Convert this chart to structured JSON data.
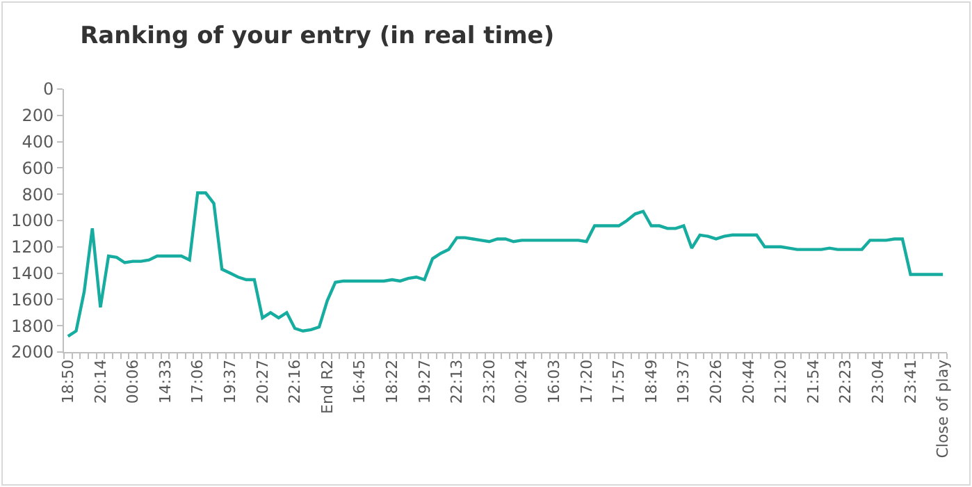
{
  "chart_data": {
    "type": "line",
    "title": "Ranking of your entry (in real time)",
    "categories": [
      "18:50",
      null,
      null,
      null,
      "20:14",
      null,
      null,
      null,
      "00:06",
      null,
      null,
      null,
      "14:33",
      null,
      null,
      null,
      "17:06",
      null,
      null,
      null,
      "19:37",
      null,
      null,
      null,
      "20:27",
      null,
      null,
      null,
      "22:16",
      null,
      null,
      null,
      "End R2",
      null,
      null,
      null,
      "16:45",
      null,
      null,
      null,
      "18:22",
      null,
      null,
      null,
      "19:27",
      null,
      null,
      null,
      "22:13",
      null,
      null,
      null,
      "23:20",
      null,
      null,
      null,
      "00:24",
      null,
      null,
      null,
      "16:03",
      null,
      null,
      null,
      "17:20",
      null,
      null,
      null,
      "17:57",
      null,
      null,
      null,
      "18:49",
      null,
      null,
      null,
      "19:37",
      null,
      null,
      null,
      "20:26",
      null,
      null,
      null,
      "20:44",
      null,
      null,
      null,
      "21:20",
      null,
      null,
      null,
      "21:54",
      null,
      null,
      null,
      "22:23",
      null,
      null,
      null,
      "23:04",
      null,
      null,
      null,
      "23:41",
      null,
      null,
      null,
      "Close of play"
    ],
    "series": [
      {
        "color": "#17aca0",
        "values": [
          1880,
          1840,
          1540,
          1060,
          1660,
          1270,
          1280,
          1320,
          1310,
          1310,
          1300,
          1270,
          1270,
          1270,
          1270,
          1300,
          790,
          790,
          870,
          1370,
          1400,
          1430,
          1450,
          1450,
          1740,
          1700,
          1740,
          1700,
          1820,
          1840,
          1830,
          1810,
          1610,
          1470,
          1460,
          1460,
          1460,
          1460,
          1460,
          1460,
          1450,
          1460,
          1440,
          1430,
          1450,
          1290,
          1250,
          1220,
          1130,
          1130,
          1140,
          1150,
          1160,
          1140,
          1140,
          1160,
          1150,
          1150,
          1150,
          1150,
          1150,
          1150,
          1150,
          1150,
          1160,
          1040,
          1040,
          1040,
          1040,
          1000,
          950,
          930,
          1040,
          1040,
          1060,
          1060,
          1040,
          1210,
          1110,
          1120,
          1140,
          1120,
          1110,
          1110,
          1110,
          1110,
          1200,
          1200,
          1200,
          1210,
          1220,
          1220,
          1220,
          1220,
          1210,
          1220,
          1220,
          1220,
          1220,
          1150,
          1150,
          1150,
          1140,
          1140,
          1410,
          1410,
          1410,
          1410,
          1410
        ]
      }
    ],
    "ylim": [
      2000,
      0
    ],
    "yticks": [
      0,
      200,
      400,
      600,
      800,
      1000,
      1200,
      1400,
      1600,
      1800,
      2000
    ],
    "grid": false,
    "marker": "none",
    "line_style": "solid"
  }
}
